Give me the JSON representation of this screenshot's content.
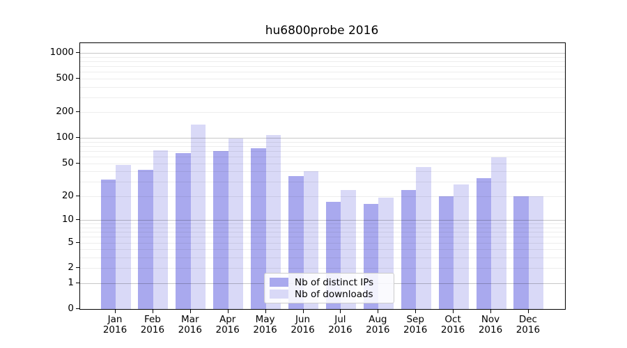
{
  "chart": {
    "title": "hu6800probe 2016"
  },
  "chart_data": {
    "type": "bar",
    "title": "hu6800probe 2016",
    "categories": [
      "Jan 2016",
      "Feb 2016",
      "Mar 2016",
      "Apr 2016",
      "May 2016",
      "Jun 2016",
      "Jul 2016",
      "Aug 2016",
      "Sep 2016",
      "Oct 2016",
      "Nov 2016",
      "Dec 2016"
    ],
    "series": [
      {
        "name": "Nb of distinct IPs",
        "color": "#a9a9ee",
        "values": [
          32,
          42,
          66,
          70,
          76,
          35,
          17,
          16,
          24,
          20,
          33,
          20
        ]
      },
      {
        "name": "Nb of downloads",
        "color": "#d9d9f7",
        "values": [
          48,
          71,
          143,
          98,
          108,
          40,
          24,
          19,
          45,
          28,
          59,
          20
        ]
      }
    ],
    "xlabel": "",
    "ylabel": "",
    "scale": "log1p",
    "ylim": [
      0,
      1300
    ],
    "y_ticks": [
      0,
      1,
      2,
      5,
      10,
      20,
      50,
      100,
      200,
      500,
      1000
    ],
    "grid_major": [
      1,
      10,
      100,
      1000
    ],
    "grid": "on",
    "legend_position": "lower center"
  }
}
